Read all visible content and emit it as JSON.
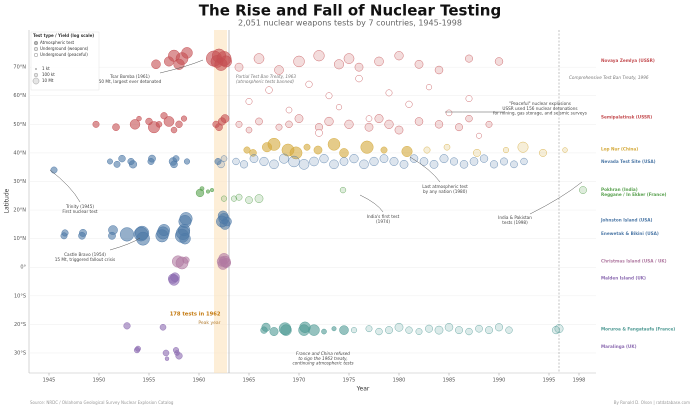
{
  "chart_data": {
    "type": "scatter",
    "title": "The Rise and Fall of Nuclear Testing",
    "subtitle": "2,051 nuclear weapons tests by 7 countries, 1945-1998",
    "x_label": "Year",
    "y_label": "Latitude",
    "xlim": [
      1943,
      2000
    ],
    "ylim": [
      -37,
      83
    ],
    "xticks": [
      1945,
      1950,
      1955,
      1960,
      1965,
      1970,
      1975,
      1980,
      1985,
      1990,
      1995,
      1998
    ],
    "yticks": [
      {
        "value": 70,
        "label": "70°N"
      },
      {
        "value": 60,
        "label": "60°N"
      },
      {
        "value": 50,
        "label": "50°N"
      },
      {
        "value": 40,
        "label": "40°N"
      },
      {
        "value": 30,
        "label": "30°N"
      },
      {
        "value": 20,
        "label": "20°N"
      },
      {
        "value": 10,
        "label": "10°N"
      },
      {
        "value": 0,
        "label": "0°"
      },
      {
        "value": -10,
        "label": "10°S"
      },
      {
        "value": -20,
        "label": "20°S"
      },
      {
        "value": -30,
        "label": "30°S"
      }
    ],
    "grid": true,
    "legend": {
      "title": "Test type / Yield (log scale)",
      "types": [
        "Atmospheric test",
        "Underground (weapons)",
        "Underground (peaceful)"
      ],
      "sizes": [
        {
          "value": 1,
          "label": "1 kt"
        },
        {
          "value": 100,
          "label": "100 kt"
        },
        {
          "value": 10000,
          "label": "10 Mt"
        }
      ]
    },
    "highlight": {
      "x": 1962,
      "lines": [
        "178 tests in 1962",
        "Peak year"
      ]
    },
    "markers": [
      {
        "x": 1963,
        "lines": [
          "Partial Test Ban Treaty, 1963",
          "(atmospheric tests banned)"
        ]
      },
      {
        "x": 1996,
        "lines": [
          "Comprehensive Test Ban Treaty, 1996"
        ]
      }
    ],
    "annotations": [
      {
        "lines": [
          "Trinity (1945)",
          "First nuclear test"
        ]
      },
      {
        "lines": [
          "Tsar Bomba (1961)",
          "50 Mt, largest ever detonated"
        ]
      },
      {
        "lines": [
          "Castle Bravo (1954)",
          "15 Mt, triggered fallout crisis"
        ]
      },
      {
        "lines": [
          "\"Peaceful\" nuclear explosions",
          "USSR used 156 nuclear detonations",
          "for mining, gas storage, and seismic surveys"
        ]
      },
      {
        "lines": [
          "Last atmospheric test",
          "by any nation (1980)"
        ]
      },
      {
        "lines": [
          "India's first test",
          "(1974)"
        ]
      },
      {
        "lines": [
          "India & Pakistan",
          "tests (1998)"
        ]
      },
      {
        "lines": [
          "France and China refused",
          "to sign the 1963 treaty,",
          "continuing atmospheric tests"
        ]
      }
    ],
    "source": "Source: NRDC / Oklahoma Geological Survey Nuclear Explosion Catalog",
    "credit": "By Ronald D. Olson | ratdatabase.com",
    "series": [
      {
        "name": "Novaya Zemlya (USSR)",
        "color": "#c44e52",
        "x": [
          1955.7,
          1957,
          1957.5,
          1958,
          1958.3,
          1958.8,
          1961.5,
          1961.8,
          1962,
          1962.2,
          1962.5,
          1962.7,
          1964,
          1966,
          1968,
          1970,
          1972,
          1974,
          1975,
          1976,
          1978,
          1980,
          1982,
          1984,
          1987,
          1990
        ],
        "values": [
          71,
          72,
          74,
          71,
          73,
          75,
          73,
          72,
          74,
          71,
          73,
          72,
          70,
          73,
          69,
          72,
          74,
          71,
          73,
          70,
          72,
          74,
          71,
          69,
          73,
          72
        ],
        "sizes": [
          200,
          300,
          1500,
          800,
          2800,
          1000,
          50000,
          3000,
          10000,
          4000,
          20000,
          1500,
          100,
          500,
          200,
          1000,
          800,
          300,
          500,
          100,
          200,
          150,
          100,
          80,
          50,
          70
        ],
        "types": [
          0,
          0,
          0,
          0,
          0,
          0,
          0,
          0,
          0,
          0,
          0,
          0,
          1,
          1,
          1,
          1,
          1,
          1,
          1,
          1,
          1,
          1,
          1,
          1,
          1,
          1
        ]
      },
      {
        "name": "Semipalatinsk (USSR)",
        "color": "#c44e52",
        "x": [
          1949.7,
          1951.7,
          1953.6,
          1954,
          1955,
          1955.5,
          1956,
          1956.5,
          1957,
          1957.5,
          1958,
          1958.5,
          1961.7,
          1962,
          1962.3,
          1962.6,
          1964,
          1965,
          1966,
          1968,
          1969,
          1970,
          1972,
          1973,
          1975,
          1977,
          1978,
          1979,
          1980,
          1982,
          1984,
          1986,
          1987,
          1989,
          1965,
          1967,
          1969,
          1971,
          1972,
          1973,
          1974,
          1976,
          1977,
          1979,
          1981,
          1983,
          1985,
          1987,
          1988
        ],
        "values": [
          50,
          49,
          50,
          52,
          51,
          49,
          50,
          53,
          51,
          48,
          50,
          52,
          50,
          49,
          51,
          52,
          50,
          48,
          51,
          49,
          50,
          52,
          49,
          51,
          50,
          49,
          52,
          50,
          48,
          51,
          50,
          49,
          52,
          50,
          58,
          62,
          55,
          64,
          47,
          60,
          56,
          66,
          52,
          61,
          57,
          63,
          54,
          59,
          46
        ],
        "sizes": [
          22,
          38,
          400,
          5,
          30,
          1600,
          14,
          26,
          520,
          14,
          30,
          10,
          25,
          40,
          60,
          100,
          20,
          15,
          40,
          20,
          30,
          100,
          60,
          150,
          150,
          100,
          120,
          150,
          100,
          80,
          70,
          50,
          30,
          20,
          20,
          30,
          15,
          25,
          40,
          20,
          10,
          30,
          15,
          20,
          25,
          10,
          15,
          20,
          8
        ],
        "types": [
          0,
          0,
          0,
          0,
          0,
          0,
          0,
          0,
          0,
          0,
          0,
          0,
          0,
          0,
          0,
          0,
          1,
          1,
          1,
          1,
          1,
          1,
          1,
          1,
          1,
          1,
          1,
          1,
          1,
          1,
          1,
          1,
          1,
          1,
          2,
          2,
          2,
          2,
          2,
          2,
          2,
          2,
          2,
          2,
          2,
          2,
          2,
          2,
          2
        ]
      },
      {
        "name": "Lop Nur (China)",
        "color": "#d4a93a",
        "x": [
          1964.8,
          1965.4,
          1966.8,
          1967.5,
          1968.9,
          1969.7,
          1970.8,
          1971.9,
          1973.5,
          1974.5,
          1976.8,
          1978.5,
          1980.8,
          1982.8,
          1984.8,
          1987.8,
          1990.7,
          1992.4,
          1994.4,
          1996.6
        ],
        "values": [
          41,
          40,
          42,
          43,
          41,
          40,
          42,
          41,
          43,
          40,
          42,
          41,
          40.5,
          41,
          42,
          40,
          41,
          42,
          40,
          41
        ],
        "sizes": [
          22,
          35,
          300,
          3300,
          3000,
          3000,
          20,
          100,
          2500,
          200,
          4000,
          20,
          700,
          20,
          15,
          50,
          10,
          660,
          50,
          5
        ],
        "types": [
          0,
          0,
          0,
          0,
          0,
          0,
          0,
          0,
          0,
          0,
          0,
          0,
          0,
          1,
          1,
          1,
          1,
          1,
          1,
          1
        ]
      },
      {
        "name": "Nevada Test Site (USA)",
        "color": "#4e79a7",
        "x": [
          1945.5,
          1951.1,
          1951.8,
          1952.3,
          1953.2,
          1953.4,
          1955.2,
          1955.3,
          1957.4,
          1957.5,
          1957.7,
          1958.8,
          1961.9,
          1962.2,
          1962.5,
          1963.7,
          1964.5,
          1965.5,
          1966.5,
          1967.5,
          1968.5,
          1969.5,
          1970.5,
          1971.5,
          1972.5,
          1973.5,
          1974.5,
          1975.5,
          1976.5,
          1977.5,
          1978.5,
          1979.5,
          1980.5,
          1981.5,
          1982.5,
          1983.5,
          1984.5,
          1985.5,
          1986.5,
          1987.5,
          1988.5,
          1989.5,
          1990.5,
          1991.5,
          1992.5
        ],
        "values": [
          34,
          37,
          36,
          38,
          37,
          36,
          37,
          38,
          37,
          36,
          38,
          37,
          37,
          36,
          38,
          37,
          36,
          38,
          37,
          36,
          38,
          37,
          36,
          37,
          38,
          36,
          37,
          38,
          36,
          37,
          38,
          37,
          36,
          38,
          37,
          36,
          38,
          37,
          36,
          37,
          38,
          36,
          37,
          36,
          37
        ],
        "sizes": [
          21,
          8,
          20,
          31,
          23,
          61,
          20,
          43,
          74,
          37,
          19,
          10,
          20,
          40,
          15,
          30,
          60,
          100,
          150,
          200,
          300,
          1000,
          500,
          200,
          150,
          200,
          100,
          150,
          200,
          150,
          100,
          120,
          100,
          80,
          90,
          100,
          120,
          60,
          80,
          90,
          70,
          60,
          50,
          40,
          30
        ],
        "types": [
          0,
          0,
          0,
          0,
          0,
          0,
          0,
          0,
          0,
          0,
          0,
          0,
          0,
          1,
          1,
          1,
          1,
          1,
          1,
          1,
          1,
          1,
          1,
          1,
          1,
          1,
          1,
          1,
          1,
          1,
          1,
          1,
          1,
          1,
          1,
          1,
          1,
          1,
          1,
          1,
          1,
          1,
          1,
          1,
          1
        ]
      },
      {
        "name": "Pokhran (India)",
        "color": "#59a14f",
        "x": [
          1974.4,
          1998.4
        ],
        "values": [
          27,
          27
        ],
        "sizes": [
          12,
          45
        ],
        "types": [
          1,
          1
        ]
      },
      {
        "name": "Reggane / In Ekker (France)",
        "color": "#59a14f",
        "x": [
          1960.1,
          1960.3,
          1960.9,
          1961.3,
          1962.5,
          1963.5,
          1964,
          1965,
          1966
        ],
        "values": [
          26,
          27.5,
          26.5,
          27,
          24,
          24,
          24.5,
          23.5,
          24
        ],
        "sizes": [
          70,
          2,
          1,
          1,
          10,
          10,
          20,
          40,
          100
        ],
        "types": [
          0,
          0,
          0,
          0,
          1,
          1,
          1,
          1,
          1
        ]
      },
      {
        "name": "Johnston Island (USA)",
        "color": "#4e79a7",
        "x": [
          1958.6,
          1958.7,
          1962.3,
          1962.4,
          1962.5,
          1962.6,
          1962.8
        ],
        "values": [
          16,
          17,
          16,
          18,
          17,
          15,
          16
        ],
        "sizes": [
          3800,
          3800,
          1400,
          400,
          800,
          600,
          200
        ],
        "types": [
          0,
          0,
          0,
          0,
          0,
          0,
          0
        ]
      },
      {
        "name": "Enewetak & Bikini (USA)",
        "color": "#4e79a7",
        "x": [
          1946.5,
          1946.6,
          1948.3,
          1948.4,
          1951.3,
          1951.4,
          1952.8,
          1954.2,
          1954.3,
          1954.4,
          1956.3,
          1956.4,
          1956.5,
          1958.3,
          1958.4,
          1958.5,
          1958.6
        ],
        "values": [
          11,
          12,
          11,
          12,
          11,
          13,
          11.5,
          11.6,
          12,
          10,
          11,
          12,
          13,
          11,
          12,
          13,
          10
        ],
        "sizes": [
          21,
          23,
          37,
          49,
          45,
          225,
          10400,
          15000,
          11000,
          6900,
          3800,
          3500,
          1700,
          9300,
          8900,
          2000,
          1000
        ],
        "types": [
          0,
          0,
          0,
          0,
          0,
          0,
          0,
          0,
          0,
          0,
          0,
          0,
          0,
          0,
          0,
          0,
          0
        ]
      },
      {
        "name": "Christmas Island (USA / UK)",
        "color": "#b07aa1",
        "x": [
          1957.9,
          1958.3,
          1958.7,
          1962.3,
          1962.4,
          1962.5,
          1962.6,
          1962.7
        ],
        "values": [
          2,
          1.5,
          2.5,
          2,
          1,
          3,
          2,
          1.5
        ],
        "sizes": [
          1800,
          3000,
          25,
          400,
          600,
          800,
          1000,
          300
        ],
        "types": [
          0,
          0,
          0,
          0,
          0,
          0,
          0,
          0
        ]
      },
      {
        "name": "Malden Island (UK)",
        "color": "#8c6bb1",
        "x": [
          1957.4,
          1957.5,
          1957.6
        ],
        "values": [
          -4,
          -4.5,
          -3.5
        ],
        "sizes": [
          300,
          720,
          200
        ],
        "types": [
          0,
          0,
          0
        ]
      },
      {
        "name": "Moruroa & Fangataufa (France)",
        "color": "#4f9a94",
        "x": [
          1966.5,
          1966.7,
          1967.5,
          1968.6,
          1968.7,
          1970.5,
          1970.6,
          1971.5,
          1972.5,
          1973.5,
          1974.5,
          1975.5,
          1977,
          1978,
          1979,
          1980,
          1981,
          1982,
          1983,
          1984,
          1985,
          1986,
          1987,
          1988,
          1989,
          1990,
          1991,
          1995.7,
          1996
        ],
        "values": [
          -22,
          -21,
          -22.5,
          -21.5,
          -22,
          -22,
          -21,
          -22,
          -22.5,
          -21.5,
          -22,
          -22,
          -21.5,
          -22.5,
          -22,
          -21,
          -22,
          -22.5,
          -21.5,
          -22,
          -21,
          -22,
          -22.5,
          -21.5,
          -22,
          -21,
          -22,
          -22,
          -21.5
        ],
        "sizes": [
          28,
          125,
          120,
          2600,
          1000,
          1000,
          900,
          1000,
          6,
          3,
          200,
          10,
          20,
          30,
          50,
          100,
          30,
          20,
          50,
          100,
          80,
          50,
          30,
          40,
          50,
          60,
          30,
          60,
          120
        ],
        "types": [
          0,
          0,
          0,
          0,
          0,
          0,
          0,
          0,
          0,
          0,
          0,
          1,
          1,
          1,
          1,
          1,
          1,
          1,
          1,
          1,
          1,
          1,
          1,
          1,
          1,
          1,
          1,
          1,
          1
        ]
      },
      {
        "name": "Maralinga (UK)",
        "color": "#8c6bb1",
        "x": [
          1952.8,
          1953.8,
          1953.9,
          1956.4,
          1956.7,
          1956.8,
          1957.7,
          1957.8,
          1958
        ],
        "values": [
          -20.5,
          -29,
          -28.5,
          -21,
          -30,
          -32,
          -29,
          -30,
          -31
        ],
        "sizes": [
          25,
          10,
          8,
          15,
          15,
          1.5,
          10,
          6,
          27
        ],
        "types": [
          0,
          0,
          0,
          0,
          0,
          0,
          0,
          0,
          0
        ]
      }
    ]
  }
}
